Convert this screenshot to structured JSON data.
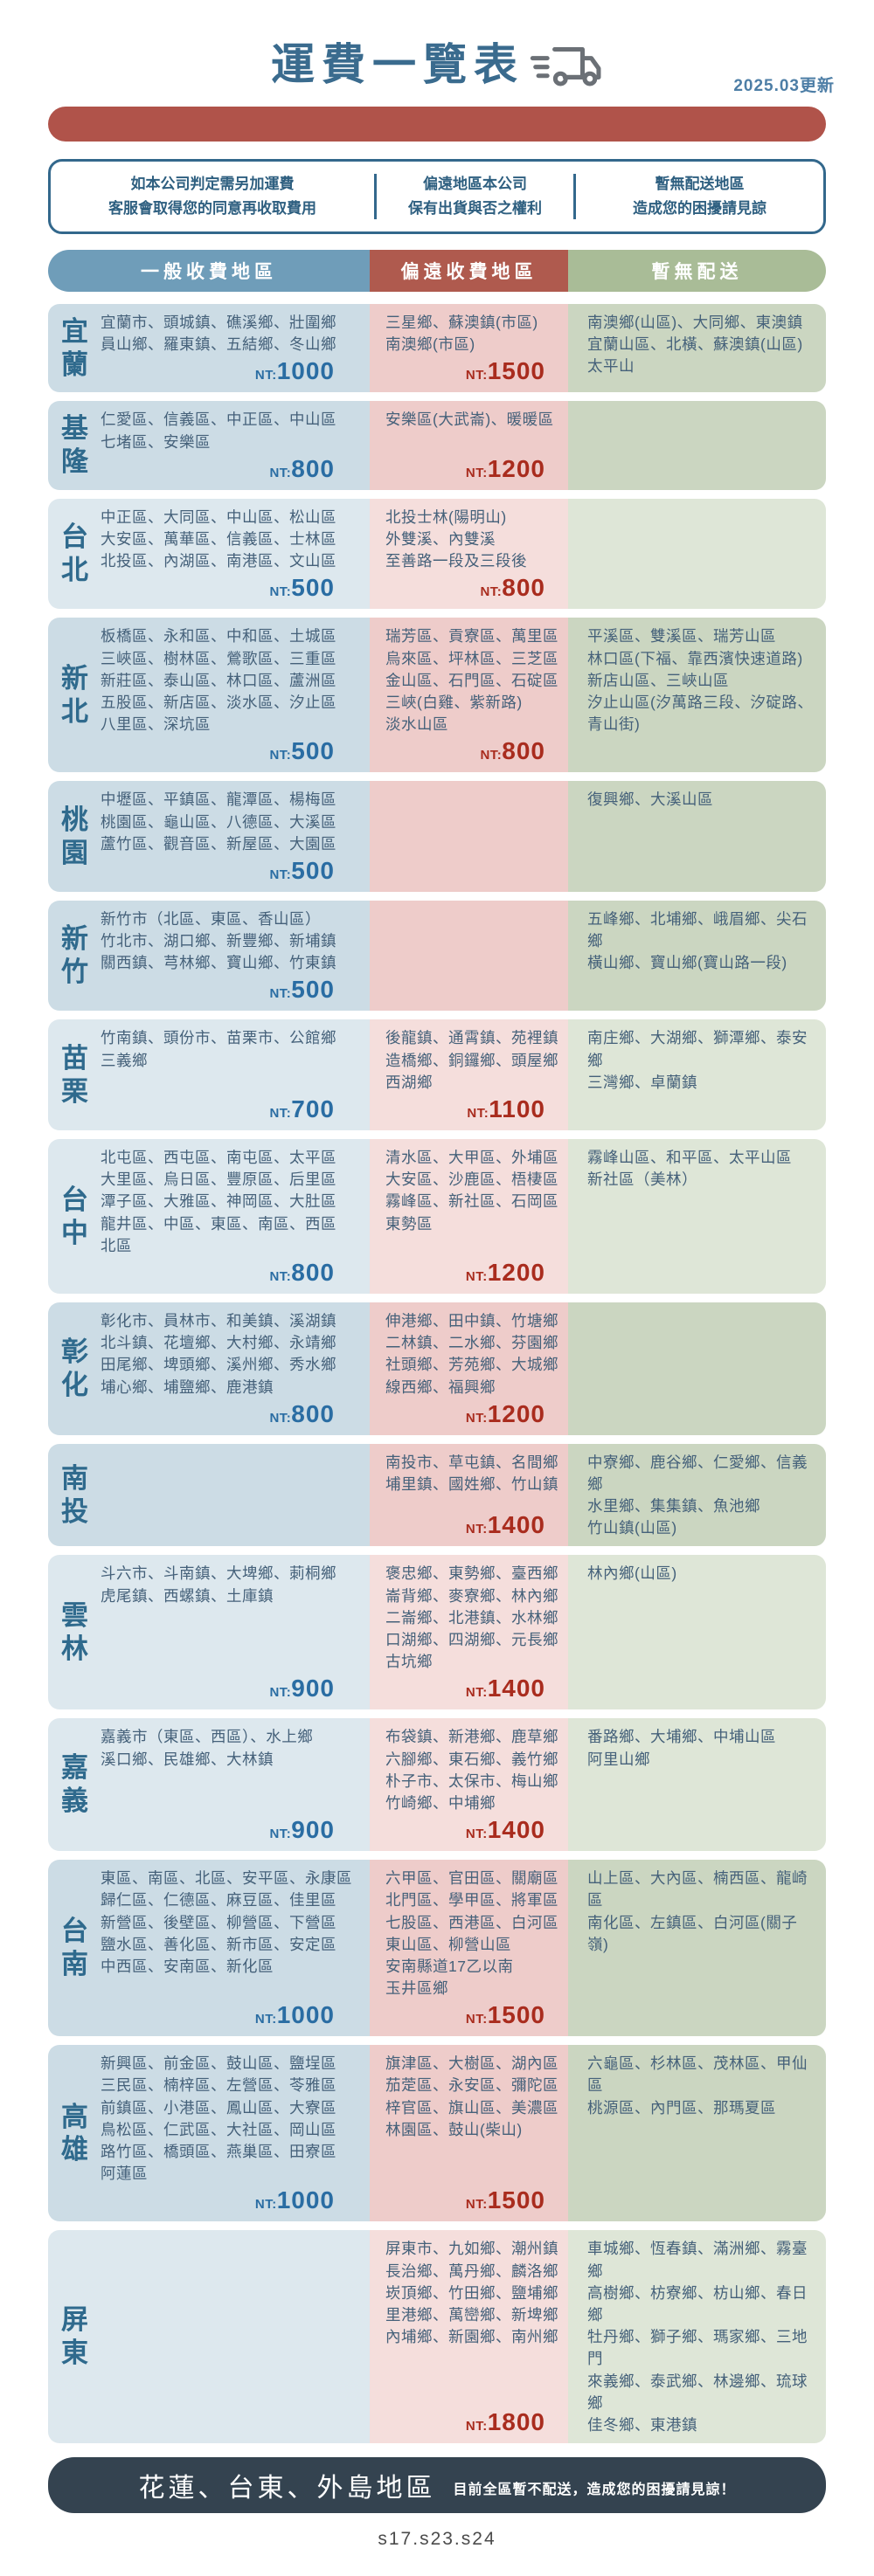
{
  "header": {
    "title": "運費一覽表",
    "updated": "2025.03更新"
  },
  "notice": {
    "items": [
      {
        "lines": [
          "如本公司判定需另加運費",
          "客服會取得您的同意再收取費用"
        ]
      },
      {
        "lines": [
          "偏遠地區本公司",
          "保有出貨與否之權利"
        ]
      },
      {
        "lines": [
          "暫無配送地區",
          "造成您的困擾請見諒"
        ]
      }
    ]
  },
  "columns": {
    "general": "一般收費地區",
    "remote": "偏遠收費地區",
    "none": "暫無配送"
  },
  "price_prefix": "NT:",
  "colors": {
    "title_blue": "#3a6b8e",
    "banner_red": "#b0534a",
    "header_blue": "#6f9db9",
    "header_red": "#af5a4e",
    "header_green": "#a9bc97",
    "cell_blue": "#ccdce5",
    "cell_pink": "#eeccca",
    "cell_green": "#cbd6c1",
    "price_blue": "#2a6da3",
    "price_red": "#a92c1e",
    "footer_dark": "#344350"
  },
  "rows": [
    {
      "region": "宜蘭",
      "general": {
        "lines": [
          "宜蘭市、頭城鎮、礁溪鄉、壯圍鄉",
          "員山鄉、羅東鎮、五結鄉、冬山鄉"
        ],
        "price": "1000"
      },
      "remote": {
        "lines": [
          "三星鄉、蘇澳鎮(市區)",
          "南澳鄉(市區)"
        ],
        "price": "1500"
      },
      "none": {
        "lines": [
          "南澳鄉(山區)、大同鄉、東澳鎮",
          "宜蘭山區、北橫、蘇澳鎮(山區)",
          "太平山"
        ]
      }
    },
    {
      "region": "基隆",
      "general": {
        "lines": [
          "仁愛區、信義區、中正區、中山區",
          "七堵區、安樂區"
        ],
        "price": "800"
      },
      "remote": {
        "lines": [
          "安樂區(大武崙)、暖暖區"
        ],
        "price": "1200"
      },
      "none": {
        "lines": []
      }
    },
    {
      "region": "台北",
      "general": {
        "lines": [
          "中正區、大同區、中山區、松山區",
          "大安區、萬華區、信義區、士林區",
          "北投區、內湖區、南港區、文山區"
        ],
        "price": "500"
      },
      "remote": {
        "lines": [
          "北投士林(陽明山)",
          "外雙溪、內雙溪",
          "至善路一段及三段後"
        ],
        "price": "800"
      },
      "none": {
        "lines": []
      }
    },
    {
      "region": "新北",
      "general": {
        "lines": [
          "板橋區、永和區、中和區、土城區",
          "三峽區、樹林區、鶯歌區、三重區",
          "新莊區、泰山區、林口區、蘆洲區",
          "五股區、新店區、淡水區、汐止區",
          "八里區、深坑區"
        ],
        "price": "500"
      },
      "remote": {
        "lines": [
          "瑞芳區、貢寮區、萬里區",
          "烏來區、坪林區、三芝區",
          "金山區、石門區、石碇區",
          "三峽(白雞、紫新路)",
          "淡水山區"
        ],
        "price": "800"
      },
      "none": {
        "lines": [
          "平溪區、雙溪區、瑞芳山區",
          "林口區(下福、靠西濱快速道路)",
          "新店山區、三峽山區",
          "汐止山區(汐萬路三段、汐碇路、",
          "青山街)"
        ]
      }
    },
    {
      "region": "桃園",
      "general": {
        "lines": [
          "中壢區、平鎮區、龍潭區、楊梅區",
          "桃園區、龜山區、八德區、大溪區",
          "蘆竹區、觀音區、新屋區、大園區"
        ],
        "price": "500"
      },
      "remote": {
        "lines": []
      },
      "none": {
        "lines": [
          "復興鄉、大溪山區"
        ]
      }
    },
    {
      "region": "新竹",
      "general": {
        "lines": [
          "新竹市（北區、東區、香山區）",
          "竹北市、湖口鄉、新豐鄉、新埔鎮",
          "關西鎮、芎林鄉、寶山鄉、竹東鎮"
        ],
        "price": "500"
      },
      "remote": {
        "lines": []
      },
      "none": {
        "lines": [
          "五峰鄉、北埔鄉、峨眉鄉、尖石鄉",
          "橫山鄉、寶山鄉(寶山路一段)"
        ]
      }
    },
    {
      "region": "苗栗",
      "general": {
        "lines": [
          "竹南鎮、頭份市、苗栗市、公館鄉",
          "三義鄉"
        ],
        "price": "700"
      },
      "remote": {
        "lines": [
          "後龍鎮、通霄鎮、苑裡鎮",
          "造橋鄉、銅鑼鄉、頭屋鄉",
          "西湖鄉"
        ],
        "price": "1100"
      },
      "none": {
        "lines": [
          "南庄鄉、大湖鄉、獅潭鄉、泰安鄉",
          "三灣鄉、卓蘭鎮"
        ]
      }
    },
    {
      "region": "台中",
      "general": {
        "lines": [
          "北屯區、西屯區、南屯區、太平區",
          "大里區、烏日區、豐原區、后里區",
          "潭子區、大雅區、神岡區、大肚區",
          "龍井區、中區、東區、南區、西區",
          "北區"
        ],
        "price": "800"
      },
      "remote": {
        "lines": [
          "清水區、大甲區、外埔區",
          "大安區、沙鹿區、梧棲區",
          "霧峰區、新社區、石岡區",
          "東勢區"
        ],
        "price": "1200"
      },
      "none": {
        "lines": [
          "霧峰山區、和平區、太平山區",
          "新社區（美林）"
        ]
      }
    },
    {
      "region": "彰化",
      "general": {
        "lines": [
          "彰化市、員林市、和美鎮、溪湖鎮",
          "北斗鎮、花壇鄉、大村鄉、永靖鄉",
          "田尾鄉、埤頭鄉、溪州鄉、秀水鄉",
          "埔心鄉、埔鹽鄉、鹿港鎮"
        ],
        "price": "800"
      },
      "remote": {
        "lines": [
          "伸港鄉、田中鎮、竹塘鄉",
          "二林鎮、二水鄉、芬園鄉",
          "社頭鄉、芳苑鄉、大城鄉",
          "線西鄉、福興鄉"
        ],
        "price": "1200"
      },
      "none": {
        "lines": []
      }
    },
    {
      "region": "南投",
      "general": {
        "lines": []
      },
      "remote": {
        "lines": [
          "南投市、草屯鎮、名間鄉",
          "埔里鎮、國姓鄉、竹山鎮"
        ],
        "price": "1400"
      },
      "none": {
        "lines": [
          "中寮鄉、鹿谷鄉、仁愛鄉、信義鄉",
          "水里鄉、集集鎮、魚池鄉",
          "竹山鎮(山區)"
        ]
      }
    },
    {
      "region": "雲林",
      "general": {
        "lines": [
          "斗六市、斗南鎮、大埤鄉、莿桐鄉",
          "虎尾鎮、西螺鎮、土庫鎮"
        ],
        "price": "900"
      },
      "remote": {
        "lines": [
          "褒忠鄉、東勢鄉、臺西鄉",
          "崙背鄉、麥寮鄉、林內鄉",
          "二崙鄉、北港鎮、水林鄉",
          "口湖鄉、四湖鄉、元長鄉",
          "古坑鄉"
        ],
        "price": "1400"
      },
      "none": {
        "lines": [
          "林內鄉(山區)"
        ]
      }
    },
    {
      "region": "嘉義",
      "general": {
        "lines": [
          "嘉義市（東區、西區）、水上鄉",
          "溪口鄉、民雄鄉、大林鎮"
        ],
        "price": "900"
      },
      "remote": {
        "lines": [
          "布袋鎮、新港鄉、鹿草鄉",
          "六腳鄉、東石鄉、義竹鄉",
          "朴子市、太保市、梅山鄉",
          "竹崎鄉、中埔鄉"
        ],
        "price": "1400"
      },
      "none": {
        "lines": [
          "番路鄉、大埔鄉、中埔山區",
          "阿里山鄉"
        ]
      }
    },
    {
      "region": "台南",
      "general": {
        "lines": [
          "東區、南區、北區、安平區、永康區",
          "歸仁區、仁德區、麻豆區、佳里區",
          "新營區、後壁區、柳營區、下營區",
          "鹽水區、善化區、新市區、安定區",
          "中西區、安南區、新化區"
        ],
        "price": "1000"
      },
      "remote": {
        "lines": [
          "六甲區、官田區、關廟區",
          "北門區、學甲區、將軍區",
          "七股區、西港區、白河區",
          "東山區、柳營山區",
          "安南縣道17乙以南",
          "玉井區鄉"
        ],
        "price": "1500"
      },
      "none": {
        "lines": [
          "山上區、大內區、楠西區、龍崎區",
          "南化區、左鎮區、白河區(關子嶺)"
        ]
      }
    },
    {
      "region": "高雄",
      "general": {
        "lines": [
          "新興區、前金區、鼓山區、鹽埕區",
          "三民區、楠梓區、左營區、苓雅區",
          "前鎮區、小港區、鳳山區、大寮區",
          "鳥松區、仁武區、大社區、岡山區",
          "路竹區、橋頭區、燕巢區、田寮區",
          "阿蓮區"
        ],
        "price": "1000"
      },
      "remote": {
        "lines": [
          "旗津區、大樹區、湖內區",
          "茄萣區、永安區、彌陀區",
          "梓官區、旗山區、美濃區",
          "林園區、鼓山(柴山)"
        ],
        "price": "1500"
      },
      "none": {
        "lines": [
          "六龜區、杉林區、茂林區、甲仙區",
          "桃源區、內門區、那瑪夏區"
        ]
      }
    },
    {
      "region": "屏東",
      "general": {
        "lines": []
      },
      "remote": {
        "lines": [
          "屏東市、九如鄉、潮州鎮",
          "長治鄉、萬丹鄉、麟洛鄉",
          "崁頂鄉、竹田鄉、鹽埔鄉",
          "里港鄉、萬巒鄉、新埤鄉",
          "內埔鄉、新園鄉、南州鄉"
        ],
        "price": "1800"
      },
      "none": {
        "lines": [
          "車城鄉、恆春鎮、滿洲鄉、霧臺鄉",
          "高樹鄉、枋寮鄉、枋山鄉、春日鄉",
          "牡丹鄉、獅子鄉、瑪家鄉、三地門",
          "來義鄉、泰武鄉、林邊鄉、琉球鄉",
          "佳冬鄉、東港鎮"
        ]
      }
    }
  ],
  "footer": {
    "title": "花蓮、台東、外島地區",
    "note": "目前全區暫不配送，造成您的困擾請見諒！"
  },
  "page_code": "s17.s23.s24"
}
